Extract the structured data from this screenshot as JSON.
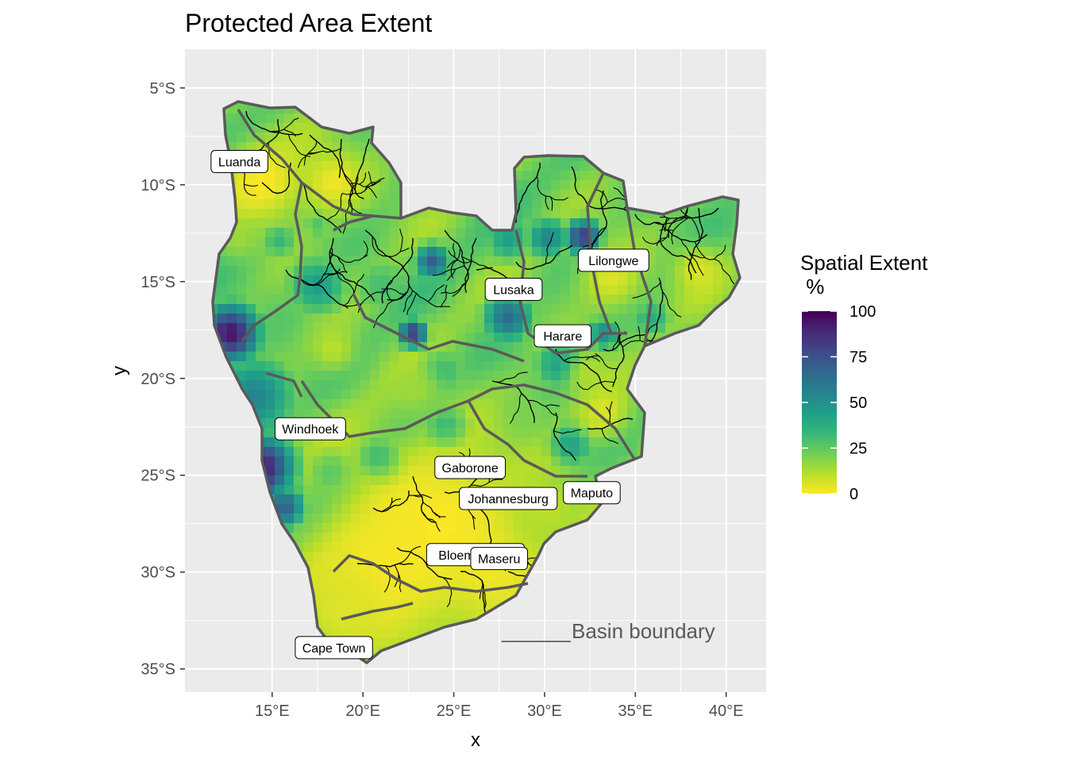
{
  "title": "Protected Area Extent",
  "axes": {
    "xlabel": "x",
    "ylabel": "y",
    "x_ticks": [
      {
        "value": 15,
        "label": "15°E"
      },
      {
        "value": 20,
        "label": "20°E"
      },
      {
        "value": 25,
        "label": "25°E"
      },
      {
        "value": 30,
        "label": "30°E"
      },
      {
        "value": 35,
        "label": "35°E"
      },
      {
        "value": 40,
        "label": "40°E"
      }
    ],
    "y_ticks": [
      {
        "value": -5,
        "label": "5°S"
      },
      {
        "value": -10,
        "label": "10°S"
      },
      {
        "value": -15,
        "label": "15°S"
      },
      {
        "value": -20,
        "label": "20°S"
      },
      {
        "value": -25,
        "label": "25°S"
      },
      {
        "value": -30,
        "label": "30°S"
      },
      {
        "value": -35,
        "label": "35°S"
      }
    ],
    "xlim": [
      10.2,
      42.2
    ],
    "ylim": [
      -36.2,
      -3.0
    ]
  },
  "legend": {
    "title_line1": "Spatial Extent",
    "title_line2": " %",
    "min": 0,
    "max": 100,
    "ticks": [
      {
        "value": 100,
        "label": "100"
      },
      {
        "value": 75,
        "label": "75"
      },
      {
        "value": 50,
        "label": "50"
      },
      {
        "value": 25,
        "label": "25"
      },
      {
        "value": 0,
        "label": "0"
      }
    ],
    "colors": [
      "#fde725",
      "#b5de2b",
      "#6ece58",
      "#35b779",
      "#1f9e89",
      "#26828e",
      "#31688e",
      "#3e4989",
      "#482878",
      "#440154"
    ]
  },
  "annotation": {
    "text": "Basin boundary",
    "line": "______"
  },
  "cities": [
    {
      "name": "Luanda",
      "lon": 13.2,
      "lat": -8.8
    },
    {
      "name": "Lilongwe",
      "lon": 33.8,
      "lat": -13.9
    },
    {
      "name": "Lusaka",
      "lon": 28.3,
      "lat": -15.4
    },
    {
      "name": "Harare",
      "lon": 31.0,
      "lat": -17.8
    },
    {
      "name": "Windhoek",
      "lon": 17.1,
      "lat": -22.6
    },
    {
      "name": "Gaborone",
      "lon": 25.9,
      "lat": -24.6
    },
    {
      "name": "Johannesburg",
      "lon": 28.0,
      "lat": -26.2
    },
    {
      "name": "Maputo",
      "lon": 32.6,
      "lat": -25.9
    },
    {
      "name": "Bloemfontein",
      "lon": 26.2,
      "lat": -29.1
    },
    {
      "name": "Maseru",
      "lon": 27.5,
      "lat": -29.3
    },
    {
      "name": "Cape Town",
      "lon": 18.4,
      "lat": -33.9
    }
  ],
  "style": {
    "panel_bg": "#ebebeb",
    "grid": "#ffffff",
    "boundary": "#5a5a5a",
    "river": "#000000"
  }
}
